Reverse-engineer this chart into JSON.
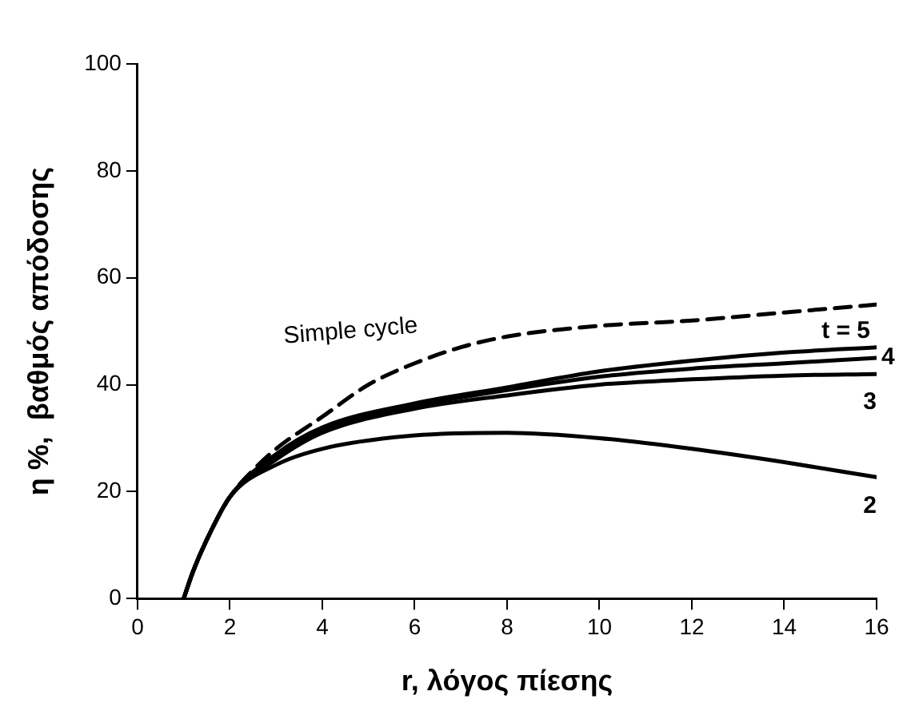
{
  "chart_data": {
    "type": "line",
    "xlabel": "r, λόγος πίεσης",
    "ylabel": "η %,  βαθμός απόδοσης",
    "xlim": [
      0,
      16
    ],
    "xticks": [
      0,
      2,
      4,
      6,
      8,
      10,
      12,
      14,
      16
    ],
    "ylim": [
      0,
      100
    ],
    "yticks": [
      0,
      20,
      40,
      60,
      80,
      100
    ],
    "grid": false,
    "legend": false,
    "marker": "none",
    "series": [
      {
        "name": "Simple cycle",
        "color": "#000000",
        "line_style": "dashed",
        "x": [
          1,
          1.2,
          1.5,
          2,
          2.5,
          3,
          4,
          5,
          6,
          7,
          8,
          10,
          12,
          14,
          16
        ],
        "values": [
          0,
          5,
          11,
          19,
          24,
          28,
          34,
          40,
          44,
          47,
          49,
          51,
          52,
          53.5,
          55
        ]
      },
      {
        "name": "t = 5",
        "color": "#000000",
        "line_style": "solid",
        "x": [
          1,
          1.2,
          1.5,
          2,
          3,
          4,
          6,
          8,
          10,
          12,
          14,
          16
        ],
        "values": [
          0,
          5,
          11,
          19,
          27,
          32,
          36.5,
          39.5,
          42.5,
          44.5,
          46,
          47
        ]
      },
      {
        "name": "4",
        "color": "#000000",
        "line_style": "solid",
        "x": [
          1,
          1.2,
          1.5,
          2,
          3,
          4,
          6,
          8,
          10,
          12,
          14,
          16
        ],
        "values": [
          0,
          5,
          11,
          19,
          26.5,
          31.5,
          36,
          39,
          41.5,
          43,
          44,
          45
        ]
      },
      {
        "name": "3",
        "color": "#000000",
        "line_style": "solid",
        "x": [
          1,
          1.2,
          1.5,
          2,
          3,
          4,
          6,
          8,
          10,
          12,
          14,
          16
        ],
        "values": [
          0,
          5,
          11,
          19,
          26,
          31,
          35.5,
          38,
          40,
          41,
          41.7,
          42
        ]
      },
      {
        "name": "2",
        "color": "#000000",
        "line_style": "solid",
        "x": [
          1,
          1.2,
          1.5,
          2,
          3,
          4,
          6,
          8,
          10,
          12,
          14,
          16
        ],
        "values": [
          0,
          5,
          11,
          19,
          25,
          28,
          30.5,
          31,
          30,
          28,
          25.5,
          22.7
        ]
      }
    ]
  }
}
